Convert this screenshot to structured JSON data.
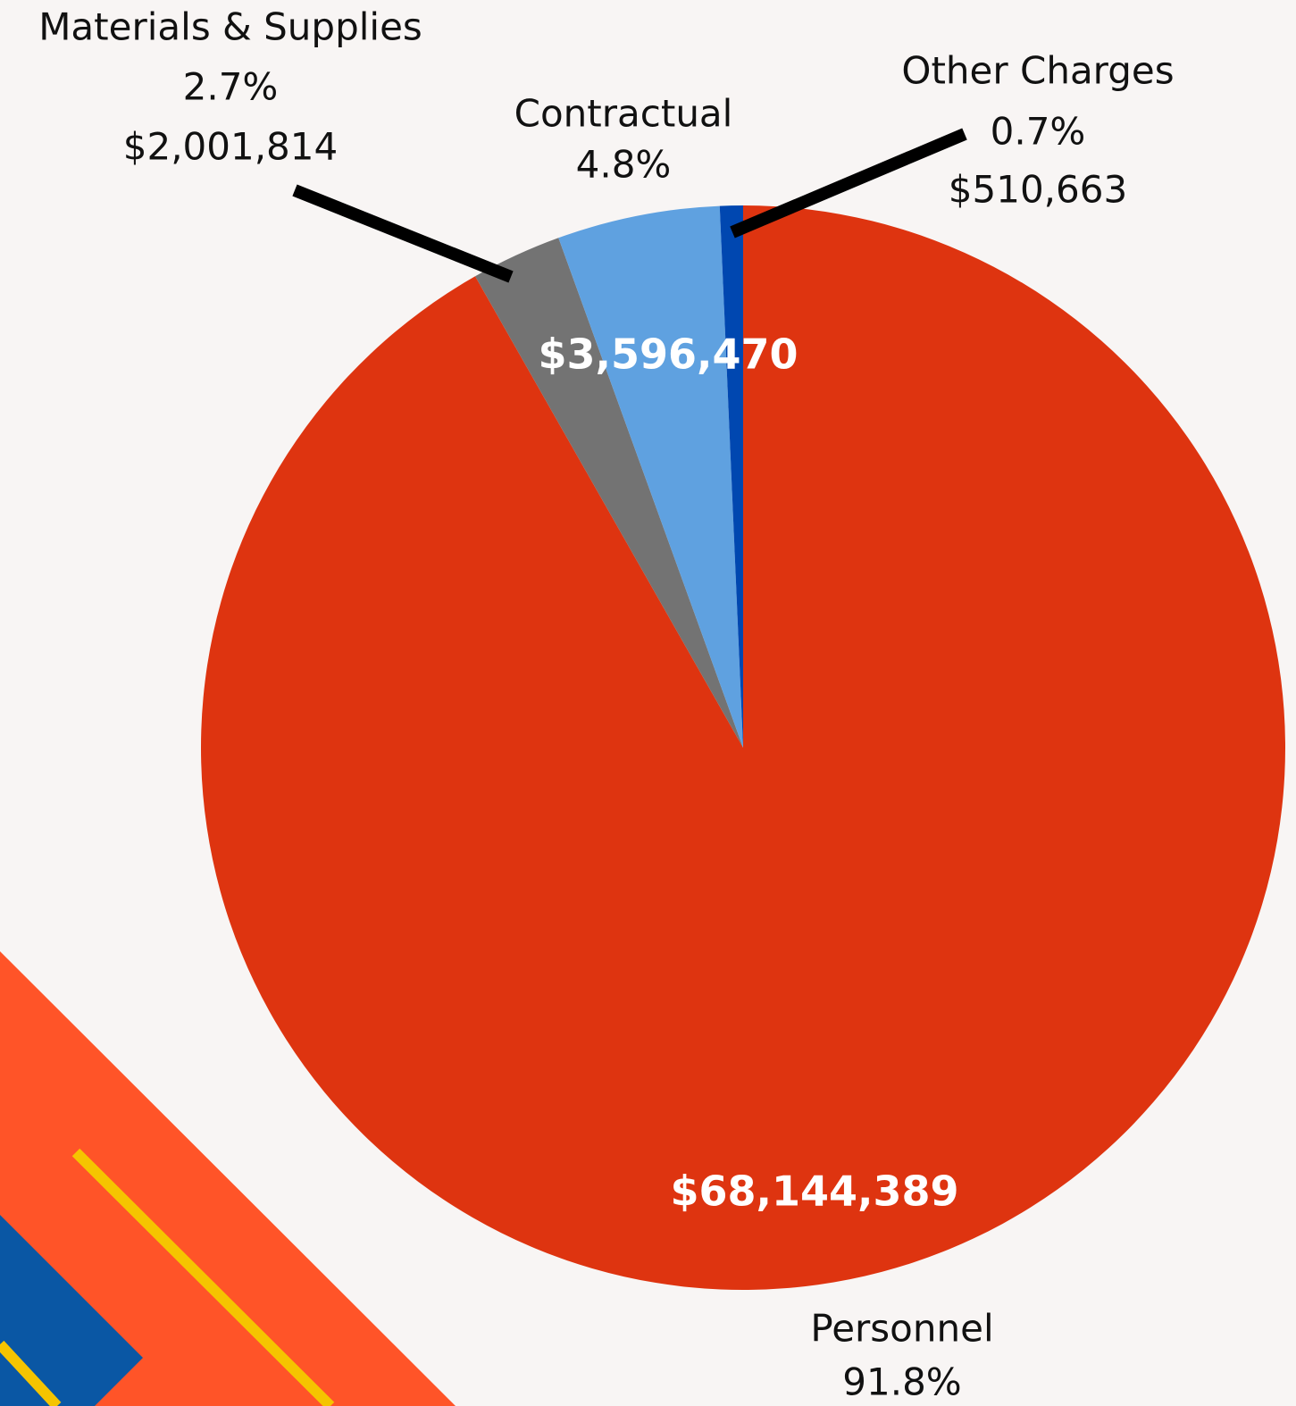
{
  "chart_data": {
    "type": "pie",
    "categories": [
      "Personnel",
      "Materials & Supplies",
      "Contractual",
      "Other Charges"
    ],
    "values": [
      68144389,
      2001814,
      3596470,
      510663
    ],
    "value_labels": [
      "$68,144,389",
      "$2,001,814",
      "$3,596,470",
      "$510,663"
    ],
    "percent_labels": [
      "91.8%",
      "2.7%",
      "4.8%",
      "0.7%"
    ],
    "colors": [
      "#de3410",
      "#737373",
      "#5fa1e0",
      "#0047b0"
    ]
  }
}
